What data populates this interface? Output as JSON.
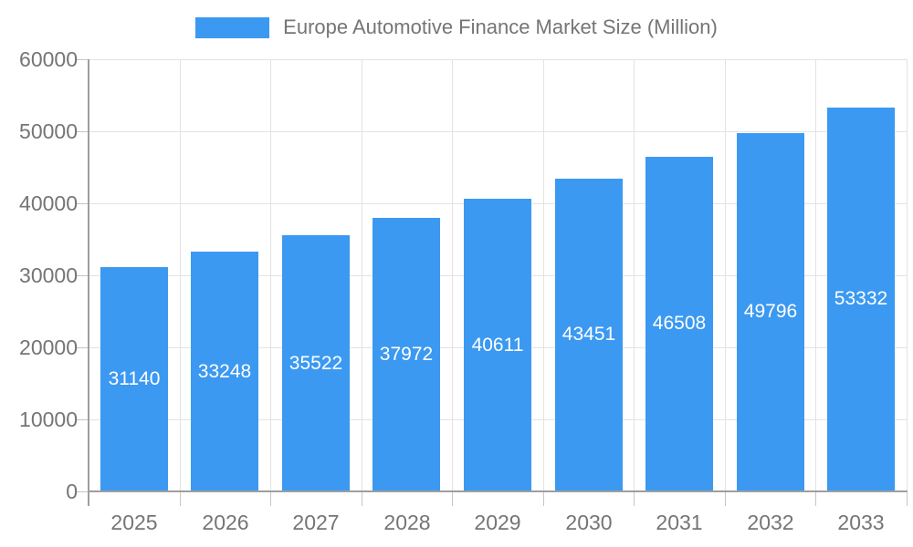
{
  "chart_data": {
    "type": "bar",
    "title": "Europe Automotive Finance Market Size (Million)",
    "categories": [
      "2025",
      "2026",
      "2027",
      "2028",
      "2029",
      "2030",
      "2031",
      "2032",
      "2033"
    ],
    "values": [
      31140,
      33248,
      35522,
      37972,
      40611,
      43451,
      46508,
      49796,
      53332
    ],
    "series_name": "Europe Automotive Finance Market Size (Million)",
    "xlabel": "",
    "ylabel": "",
    "ylim": [
      0,
      60000
    ],
    "ytick_step": 10000,
    "ytick_labels": [
      "0",
      "10000",
      "20000",
      "30000",
      "40000",
      "50000",
      "60000"
    ],
    "grid": true,
    "legend_position": "top",
    "value_label_style": "inside-center",
    "colors": {
      "bar": "#3B99F1",
      "axis": "#9E9E9E",
      "grid": "#E3E3E3",
      "tick": "#C6C6C6",
      "tick_label": "#757575",
      "value_label": "#FFFFFF",
      "background": "#FFFFFF"
    }
  }
}
